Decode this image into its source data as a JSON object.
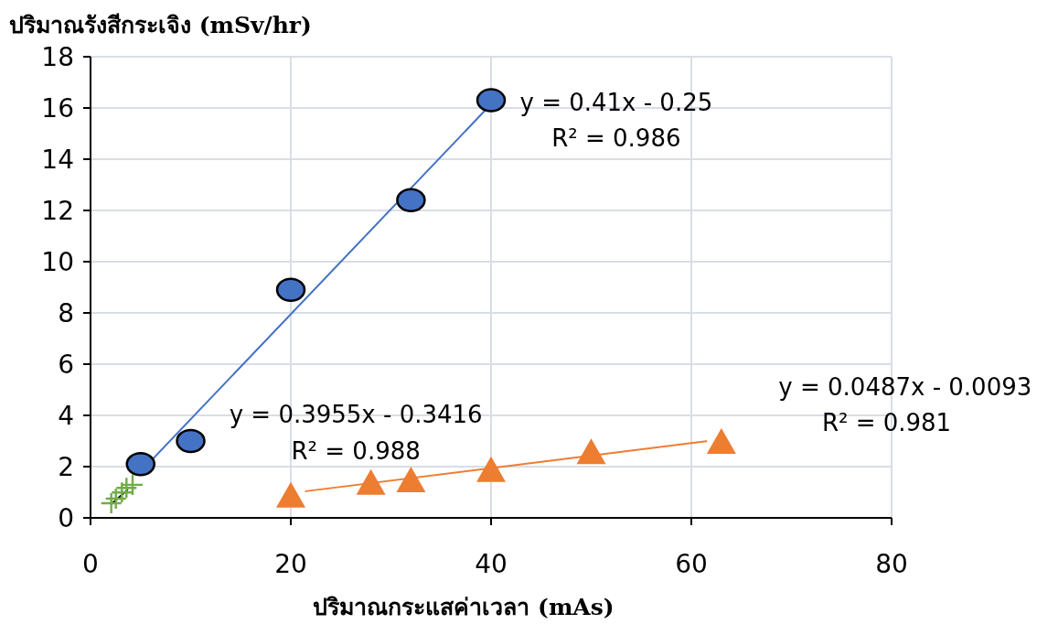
{
  "chart_data": {
    "type": "scatter",
    "ylabel": "ปริมาณรังสีกระเจิง (mSv/hr)",
    "xlabel": "ปริมาณกระแสค่าเวลา (mAs)",
    "xlim": [
      0,
      80
    ],
    "xticks": [
      0,
      20,
      40,
      60,
      80
    ],
    "ylim": [
      0,
      18
    ],
    "yticks": [
      0,
      2,
      4,
      6,
      8,
      10,
      12,
      14,
      16,
      18
    ],
    "grid": true,
    "series": [
      {
        "type": "line",
        "color": "#4472c4",
        "x": [
          5,
          40
        ],
        "values": [
          1.8,
          16.15
        ]
      },
      {
        "type": "line",
        "color": "#ed7d31",
        "x": [
          21.5,
          61.5
        ],
        "values": [
          1.04,
          2.99
        ]
      },
      {
        "type": "line",
        "color": "#000000",
        "x": [
          2.07,
          3.68
        ],
        "values": [
          0.54,
          1.09
        ]
      },
      {
        "type": "scatter",
        "marker": "circle",
        "color": "#4472c4",
        "x": [
          5,
          10,
          20,
          32,
          40
        ],
        "values": [
          2.1,
          3.0,
          8.9,
          12.4,
          16.3
        ]
      },
      {
        "type": "scatter",
        "marker": "triangle",
        "color": "#ed7d31",
        "x": [
          20,
          28,
          32,
          40,
          50,
          63
        ],
        "values": [
          0.9,
          1.4,
          1.5,
          1.9,
          2.6,
          3.0
        ]
      },
      {
        "type": "scatter",
        "marker": "cross",
        "color": "#70ad47",
        "x": [
          2.07,
          2.53,
          3.13,
          3.59,
          4.2
        ],
        "values": [
          0.57,
          0.75,
          0.99,
          1.17,
          1.29
        ]
      }
    ],
    "annotations": [
      "y = 0.41x - 0.25",
      "R² = 0.986",
      "y = 0.3955x - 0.3416",
      "R² = 0.988",
      "y = 0.0487x - 0.0093",
      "R² = 0.981"
    ]
  }
}
